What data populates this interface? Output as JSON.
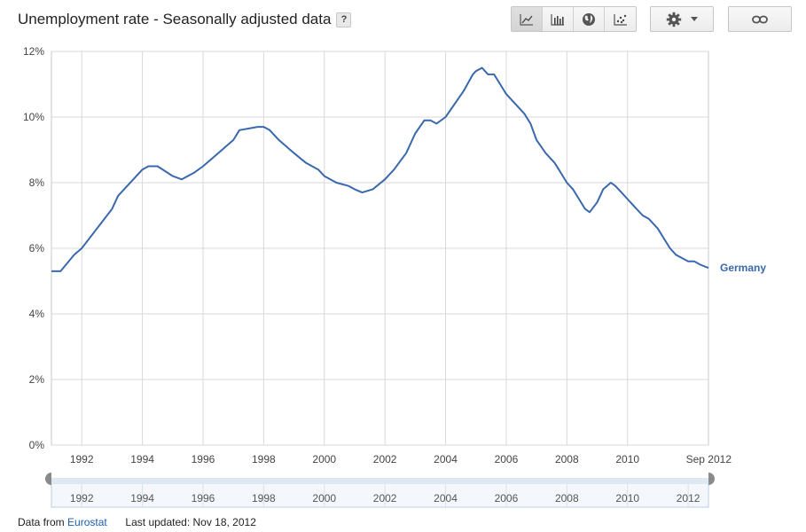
{
  "header": {
    "title": "Unemployment rate - Seasonally adjusted data",
    "help_label": "?",
    "chart_type_buttons": [
      {
        "name": "line-chart-icon",
        "active": true
      },
      {
        "name": "bar-chart-icon",
        "active": false
      },
      {
        "name": "globe-icon",
        "active": false
      },
      {
        "name": "scatter-chart-icon",
        "active": false
      }
    ],
    "settings_icon": "gear-icon",
    "link_icon": "link-icon"
  },
  "footer": {
    "data_from_label": "Data from",
    "source_link": "Eurostat",
    "updated_label": "Last updated: Nov 18, 2012"
  },
  "chart_data": {
    "type": "line",
    "title": "Unemployment rate - Seasonally adjusted data",
    "xlabel": "",
    "ylabel": "",
    "xlim": [
      1991.0,
      2012.67
    ],
    "ylim": [
      0,
      12
    ],
    "y_ticks": [
      0,
      2,
      4,
      6,
      8,
      10,
      12
    ],
    "y_tick_labels": [
      "0%",
      "2%",
      "4%",
      "6%",
      "8%",
      "10%",
      "12%"
    ],
    "x_ticks": [
      1992,
      1994,
      1996,
      1998,
      2000,
      2002,
      2004,
      2006,
      2008,
      2010
    ],
    "x_tick_labels": [
      "1992",
      "1994",
      "1996",
      "1998",
      "2000",
      "2002",
      "2004",
      "2006",
      "2008",
      "2010"
    ],
    "x_end_label": "Sep 2012",
    "grid": true,
    "line_color": "#3a68ad",
    "series": [
      {
        "name": "Germany",
        "x": [
          1991.0,
          1991.3,
          1991.75,
          1992.0,
          1992.5,
          1993.0,
          1993.2,
          1993.5,
          1994.0,
          1994.2,
          1994.5,
          1995.0,
          1995.3,
          1995.7,
          1996.0,
          1996.5,
          1997.0,
          1997.2,
          1997.8,
          1998.0,
          1998.2,
          1998.5,
          1999.0,
          1999.4,
          1999.8,
          2000.0,
          2000.4,
          2000.8,
          2001.0,
          2001.25,
          2001.6,
          2002.0,
          2002.3,
          2002.7,
          2003.0,
          2003.3,
          2003.5,
          2003.7,
          2004.0,
          2004.3,
          2004.6,
          2004.9,
          2005.0,
          2005.2,
          2005.4,
          2005.6,
          2005.8,
          2006.0,
          2006.3,
          2006.6,
          2006.8,
          2007.0,
          2007.3,
          2007.6,
          2007.8,
          2008.0,
          2008.2,
          2008.4,
          2008.6,
          2008.75,
          2009.0,
          2009.2,
          2009.45,
          2009.6,
          2009.8,
          2010.0,
          2010.2,
          2010.5,
          2010.7,
          2011.0,
          2011.2,
          2011.4,
          2011.6,
          2011.8,
          2012.0,
          2012.2,
          2012.4,
          2012.67
        ],
        "values": [
          5.3,
          5.3,
          5.8,
          6.0,
          6.6,
          7.2,
          7.6,
          7.9,
          8.4,
          8.5,
          8.5,
          8.2,
          8.1,
          8.3,
          8.5,
          8.9,
          9.3,
          9.6,
          9.7,
          9.7,
          9.6,
          9.3,
          8.9,
          8.6,
          8.4,
          8.2,
          8.0,
          7.9,
          7.8,
          7.7,
          7.8,
          8.1,
          8.4,
          8.9,
          9.5,
          9.9,
          9.9,
          9.8,
          10.0,
          10.4,
          10.8,
          11.3,
          11.4,
          11.5,
          11.3,
          11.3,
          11.0,
          10.7,
          10.4,
          10.1,
          9.8,
          9.3,
          8.9,
          8.6,
          8.3,
          8.0,
          7.8,
          7.5,
          7.2,
          7.1,
          7.4,
          7.8,
          8.0,
          7.9,
          7.7,
          7.5,
          7.3,
          7.0,
          6.9,
          6.6,
          6.3,
          6.0,
          5.8,
          5.7,
          5.6,
          5.6,
          5.5,
          5.4
        ]
      }
    ],
    "range_selector": {
      "x_tick_labels": [
        "1992",
        "1994",
        "1996",
        "1998",
        "2000",
        "2002",
        "2004",
        "2006",
        "2008",
        "2010",
        "2012"
      ]
    }
  }
}
